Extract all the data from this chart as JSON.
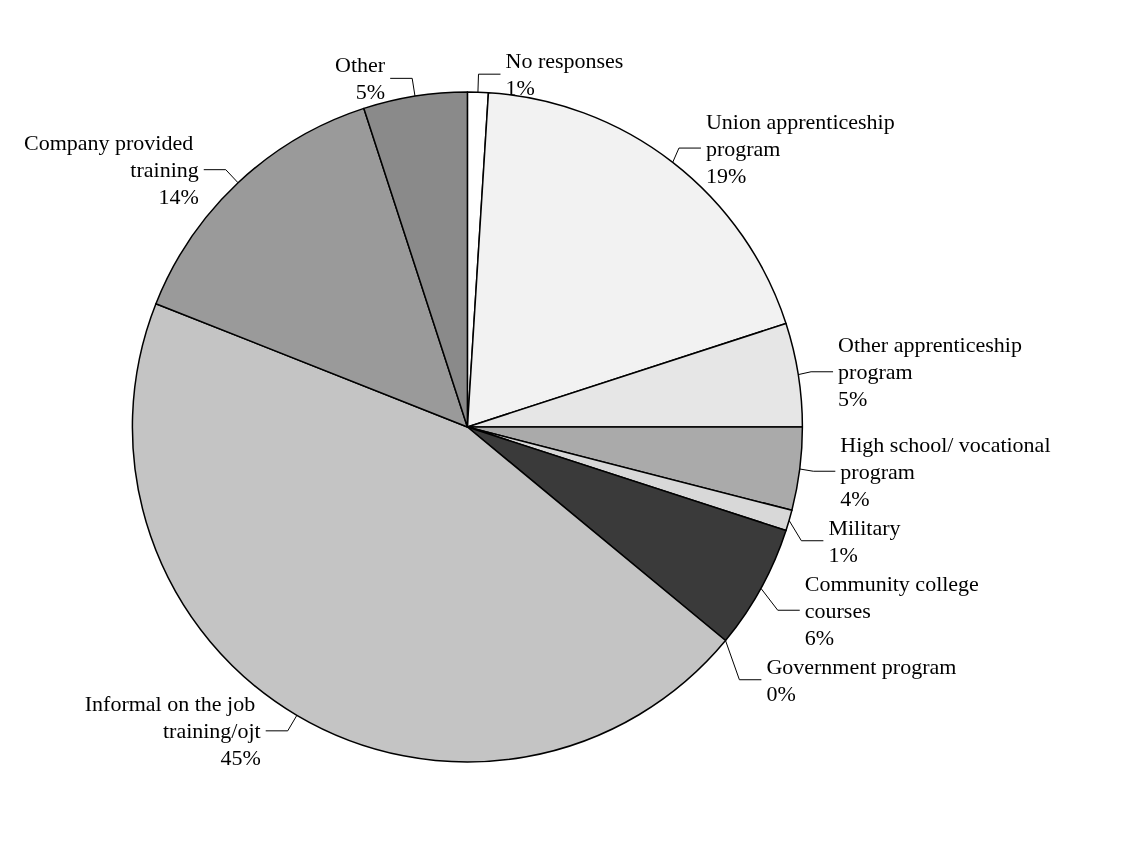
{
  "chart_data": {
    "type": "pie",
    "categories": [
      "No responses",
      "Union apprenticeship program",
      "Other apprenticeship program",
      "High school/ vocational program",
      "Military",
      "Community college courses",
      "Government program",
      "Informal on the job training/ojt",
      "Company provided training",
      "Other"
    ],
    "values": [
      1,
      19,
      5,
      4,
      1,
      6,
      0,
      45,
      14,
      5
    ],
    "colors": [
      "#ffffff",
      "#f2f2f2",
      "#e6e6e6",
      "#aaaaaa",
      "#d8d8d8",
      "#3a3a3a",
      "#808080",
      "#c4c4c4",
      "#9a9a9a",
      "#8a8a8a"
    ],
    "value_labels": [
      "1%",
      "19%",
      "5%",
      "4%",
      "1%",
      "6%",
      "0%",
      "45%",
      "14%",
      "5%"
    ]
  }
}
